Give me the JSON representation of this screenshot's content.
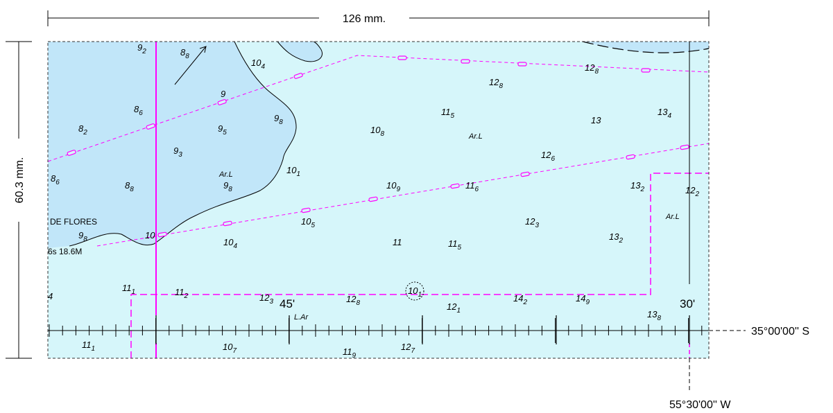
{
  "dimensions": {
    "width_label": "126 mm.",
    "height_label": "60.3 mm."
  },
  "coordinates": {
    "latitude_label": "35°00'00'' S",
    "longitude_label": "55°30'00'' W",
    "minute_45": "45'",
    "minute_30": "30'"
  },
  "place_labels": {
    "de_flores": "DE FLORES",
    "light_char": "6s 18.6M"
  },
  "seabed_labels": [
    {
      "id": "ar-l-1",
      "text": "Ar.L"
    },
    {
      "id": "ar-l-2",
      "text": "Ar.L"
    },
    {
      "id": "ar-l-3",
      "text": "Ar.L"
    },
    {
      "id": "l-ar-1",
      "text": "L.Ar"
    }
  ],
  "soundings": [
    {
      "id": "s01",
      "main": "9",
      "sub": "2"
    },
    {
      "id": "s02",
      "main": "8",
      "sub": "8"
    },
    {
      "id": "s03",
      "main": "10",
      "sub": "4"
    },
    {
      "id": "s04",
      "main": "9",
      "sub": ""
    },
    {
      "id": "s05",
      "main": "8",
      "sub": "6"
    },
    {
      "id": "s06",
      "main": "8",
      "sub": "2"
    },
    {
      "id": "s07",
      "main": "9",
      "sub": "5"
    },
    {
      "id": "s08",
      "main": "9",
      "sub": "8"
    },
    {
      "id": "s09",
      "main": "9",
      "sub": "3"
    },
    {
      "id": "s10",
      "main": "8",
      "sub": "6"
    },
    {
      "id": "s11",
      "main": "8",
      "sub": "8"
    },
    {
      "id": "s12",
      "main": "9",
      "sub": "8"
    },
    {
      "id": "s13",
      "main": "10",
      "sub": "1"
    },
    {
      "id": "s14",
      "main": "9",
      "sub": "8"
    },
    {
      "id": "s15",
      "main": "10",
      "sub": ""
    },
    {
      "id": "s16",
      "main": "10",
      "sub": "4"
    },
    {
      "id": "s17",
      "main": "10",
      "sub": "5"
    },
    {
      "id": "s18",
      "main": "10",
      "sub": "8"
    },
    {
      "id": "s19",
      "main": "10",
      "sub": "9"
    },
    {
      "id": "s20",
      "main": "11",
      "sub": "5"
    },
    {
      "id": "s21",
      "main": "11",
      "sub": "6"
    },
    {
      "id": "s22",
      "main": "11",
      "sub": ""
    },
    {
      "id": "s23",
      "main": "11",
      "sub": "5"
    },
    {
      "id": "s24",
      "main": "12",
      "sub": "8"
    },
    {
      "id": "s25",
      "main": "12",
      "sub": "8"
    },
    {
      "id": "s26",
      "main": "13",
      "sub": ""
    },
    {
      "id": "s27",
      "main": "13",
      "sub": "4"
    },
    {
      "id": "s28",
      "main": "12",
      "sub": "6"
    },
    {
      "id": "s29",
      "main": "13",
      "sub": "2"
    },
    {
      "id": "s30",
      "main": "12",
      "sub": "2"
    },
    {
      "id": "s31",
      "main": "12",
      "sub": "3"
    },
    {
      "id": "s32",
      "main": "13",
      "sub": "2"
    },
    {
      "id": "s33",
      "main": "11",
      "sub": "1"
    },
    {
      "id": "s34",
      "main": "11",
      "sub": "2"
    },
    {
      "id": "s35",
      "main": "12",
      "sub": "3"
    },
    {
      "id": "s36",
      "main": "12",
      "sub": "8"
    },
    {
      "id": "s37",
      "main": "10",
      "sub": "1"
    },
    {
      "id": "s38",
      "main": "12",
      "sub": "1"
    },
    {
      "id": "s39",
      "main": "14",
      "sub": "2"
    },
    {
      "id": "s40",
      "main": "14",
      "sub": "9"
    },
    {
      "id": "s41",
      "main": "13",
      "sub": "8"
    },
    {
      "id": "s42",
      "main": "11",
      "sub": "1"
    },
    {
      "id": "s43",
      "main": "10",
      "sub": "7"
    },
    {
      "id": "s44",
      "main": "11",
      "sub": "9"
    },
    {
      "id": "s45",
      "main": "12",
      "sub": "7"
    },
    {
      "id": "s46",
      "main": "4",
      "sub": ""
    }
  ],
  "colors": {
    "sea_deep": "#d6f6fa",
    "sea_shallow": "#c1e6f9",
    "magenta": "#ff00ff",
    "coast_line": "#000000"
  }
}
